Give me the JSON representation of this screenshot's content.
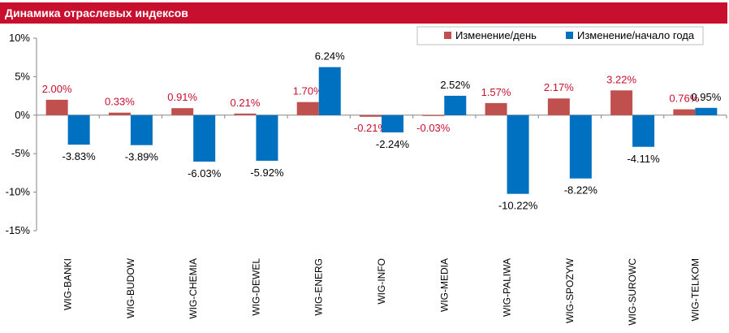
{
  "header": {
    "title": "Динамика отраслевых индексов"
  },
  "colors": {
    "header_bg": "#c8102e",
    "series_day": "#c0504d",
    "series_ytd": "#0070c0"
  },
  "chart_data": {
    "type": "bar",
    "categories": [
      "WIG-BANKI",
      "WIG-BUDOW",
      "WIG-CHEMIA",
      "WIG-DEWEL",
      "WIG-ENERG",
      "WIG-INFO",
      "WIG-MEDIA",
      "WIG-PALIWA",
      "WIG-SPOZYW",
      "WIG-SUROWC",
      "WIG-TELKOM"
    ],
    "series": [
      {
        "name": "Изменение/день",
        "values": [
          2.0,
          0.33,
          0.91,
          0.21,
          1.7,
          -0.21,
          -0.03,
          1.57,
          2.17,
          3.22,
          0.76
        ],
        "labels": [
          "2.00%",
          "0.33%",
          "0.91%",
          "0.21%",
          "1.70%",
          "-0.21%",
          "-0.03%",
          "1.57%",
          "2.17%",
          "3.22%",
          "0.76%"
        ]
      },
      {
        "name": "Изменение/начало года",
        "values": [
          -3.83,
          -3.89,
          -6.03,
          -5.92,
          6.24,
          -2.24,
          2.52,
          -10.22,
          -8.22,
          -4.11,
          0.95
        ],
        "labels": [
          "-3.83%",
          "-3.89%",
          "-6.03%",
          "-5.92%",
          "6.24%",
          "-2.24%",
          "2.52%",
          "-10.22%",
          "-8.22%",
          "-4.11%",
          "0.95%"
        ]
      }
    ],
    "ylim": [
      -15,
      10
    ],
    "yticks": [
      10,
      5,
      0,
      -5,
      -10,
      -15
    ],
    "ytick_labels": [
      "10%",
      "5%",
      "0%",
      "-5%",
      "-10%",
      "-15%"
    ],
    "legend": "top-right",
    "grid": false
  }
}
